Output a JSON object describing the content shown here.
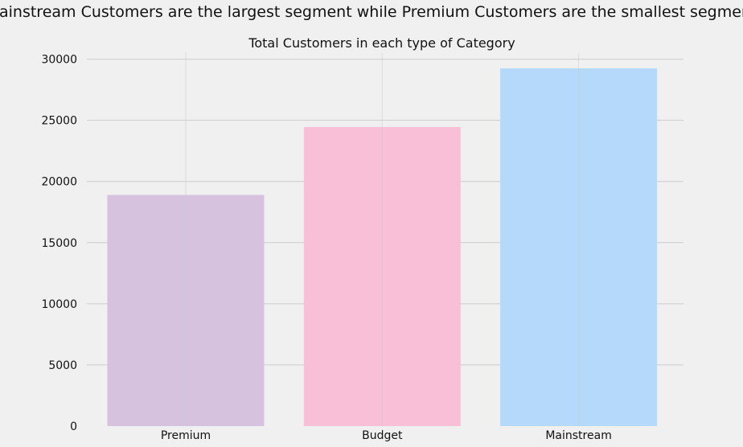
{
  "chart_data": {
    "type": "bar",
    "suptitle": "Mainstream Customers are the largest segment while Premium Customers are the smallest segment",
    "title": "Total Customers in each type of Category",
    "xlabel": "",
    "ylabel": "",
    "categories": [
      "Premium",
      "Budget",
      "Mainstream"
    ],
    "values": [
      18900,
      24450,
      29250
    ],
    "colors": [
      "#d6c2df",
      "#f9bfd6",
      "#b4d9fa"
    ],
    "bar_opacity": 1,
    "ylim": [
      0,
      30500
    ],
    "yticks": [
      0,
      5000,
      10000,
      15000,
      20000,
      25000,
      30000
    ],
    "ytick_labels": [
      "0",
      "5000",
      "10000",
      "15000",
      "20000",
      "25000",
      "30000"
    ],
    "grid": true,
    "background": "#f0f0f0",
    "grid_color": "#cbcbcb"
  }
}
